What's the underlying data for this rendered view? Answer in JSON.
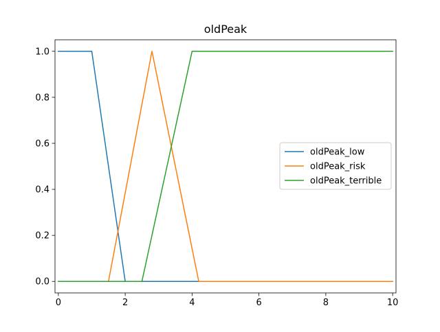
{
  "chart_data": {
    "type": "line",
    "title": "oldPeak",
    "xlabel": "",
    "ylabel": "",
    "xlim": [
      -0.1,
      10.1
    ],
    "ylim": [
      -0.05,
      1.05
    ],
    "xticks": [
      0,
      2,
      4,
      6,
      8,
      10
    ],
    "yticks": [
      0.0,
      0.2,
      0.4,
      0.6,
      0.8,
      1.0
    ],
    "xtick_labels": [
      "0",
      "2",
      "4",
      "6",
      "8",
      "10"
    ],
    "ytick_labels": [
      "0.0",
      "0.2",
      "0.4",
      "0.6",
      "0.8",
      "1.0"
    ],
    "grid": false,
    "legend_position": "center-right",
    "series": [
      {
        "name": "oldPeak_low",
        "color": "#1f77b4",
        "x": [
          0,
          1,
          2,
          10
        ],
        "y": [
          1,
          1,
          0,
          0
        ]
      },
      {
        "name": "oldPeak_risk",
        "color": "#ff7f0e",
        "x": [
          0,
          1.5,
          2.8,
          4.2,
          10
        ],
        "y": [
          0,
          0,
          1,
          0,
          0
        ]
      },
      {
        "name": "oldPeak_terrible",
        "color": "#2ca02c",
        "x": [
          0,
          2.5,
          4,
          10
        ],
        "y": [
          0,
          0,
          1,
          1
        ]
      }
    ]
  }
}
